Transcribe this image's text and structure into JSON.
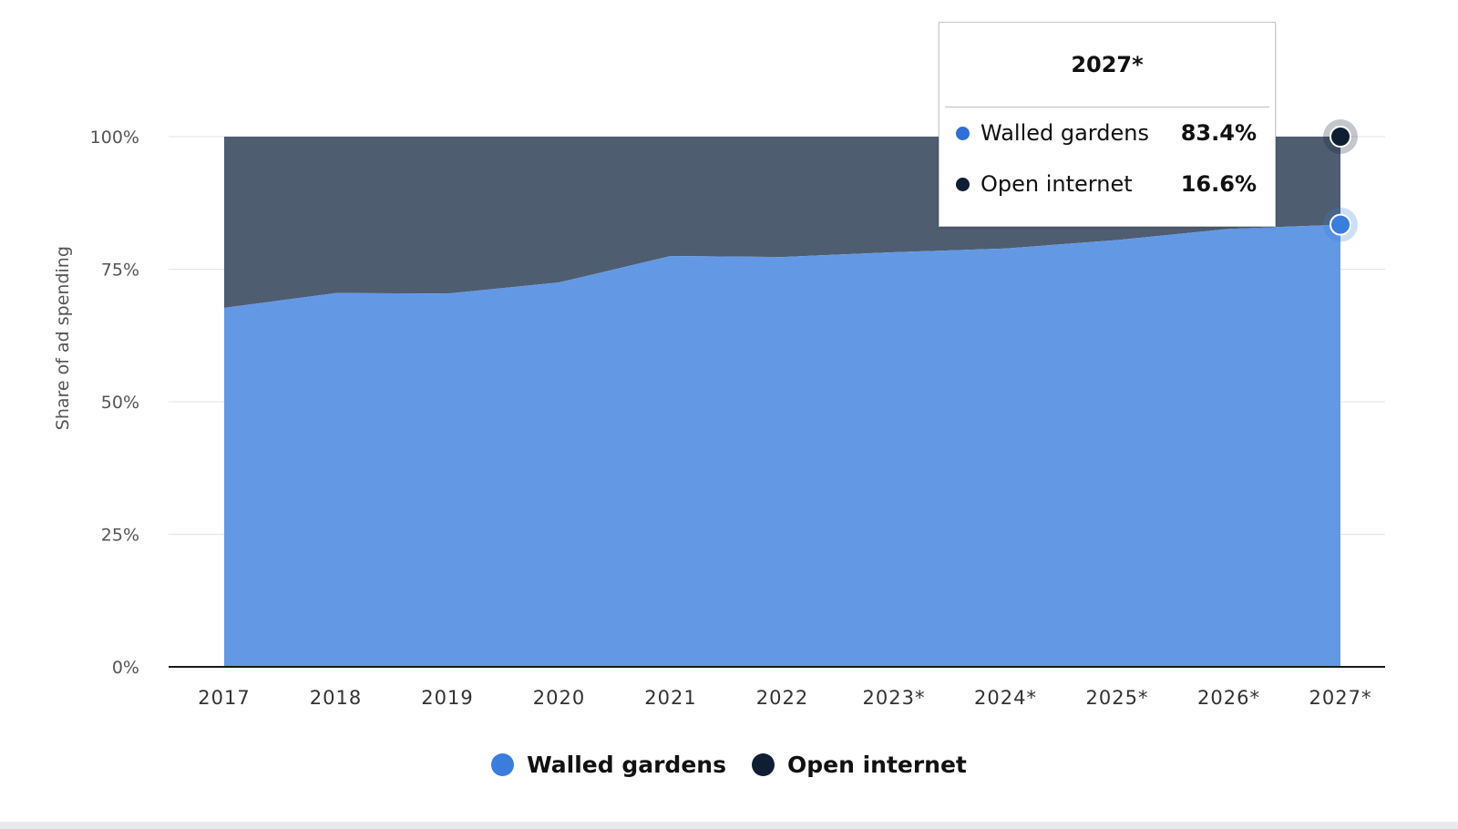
{
  "chart_data": {
    "type": "area",
    "stacked": true,
    "categories": [
      "2017",
      "2018",
      "2019",
      "2020",
      "2021",
      "2022",
      "2023*",
      "2024*",
      "2025*",
      "2026*",
      "2027*"
    ],
    "series": [
      {
        "name": "Walled gardens",
        "color": "#6399e4",
        "values": [
          67.7,
          70.5,
          70.4,
          72.5,
          77.5,
          77.3,
          78.2,
          78.9,
          80.5,
          82.6,
          83.4
        ]
      },
      {
        "name": "Open internet",
        "color": "#4f5d71",
        "values": [
          32.3,
          29.5,
          29.6,
          27.5,
          22.5,
          22.7,
          21.8,
          21.1,
          19.5,
          17.4,
          16.6
        ]
      }
    ],
    "ylabel": "Share of ad spending",
    "xlabel": "",
    "ylim": [
      0,
      100
    ],
    "yticks": [
      "0%",
      "25%",
      "50%",
      "75%",
      "100%"
    ],
    "grid": true,
    "legend_position": "bottom-center"
  },
  "tooltip": {
    "title": "2027*",
    "rows": [
      {
        "name": "Walled gardens",
        "value": "83.4%",
        "color": "#2f6fd8"
      },
      {
        "name": "Open internet",
        "value": "16.6%",
        "color": "#0f1e33"
      }
    ]
  },
  "legend": {
    "items": [
      {
        "name": "Walled gardens",
        "color": "#3b7ddd"
      },
      {
        "name": "Open internet",
        "color": "#0f1e33"
      }
    ]
  },
  "marker_colors": {
    "walled": "#3b7ddd",
    "open": "#0f1e33"
  }
}
